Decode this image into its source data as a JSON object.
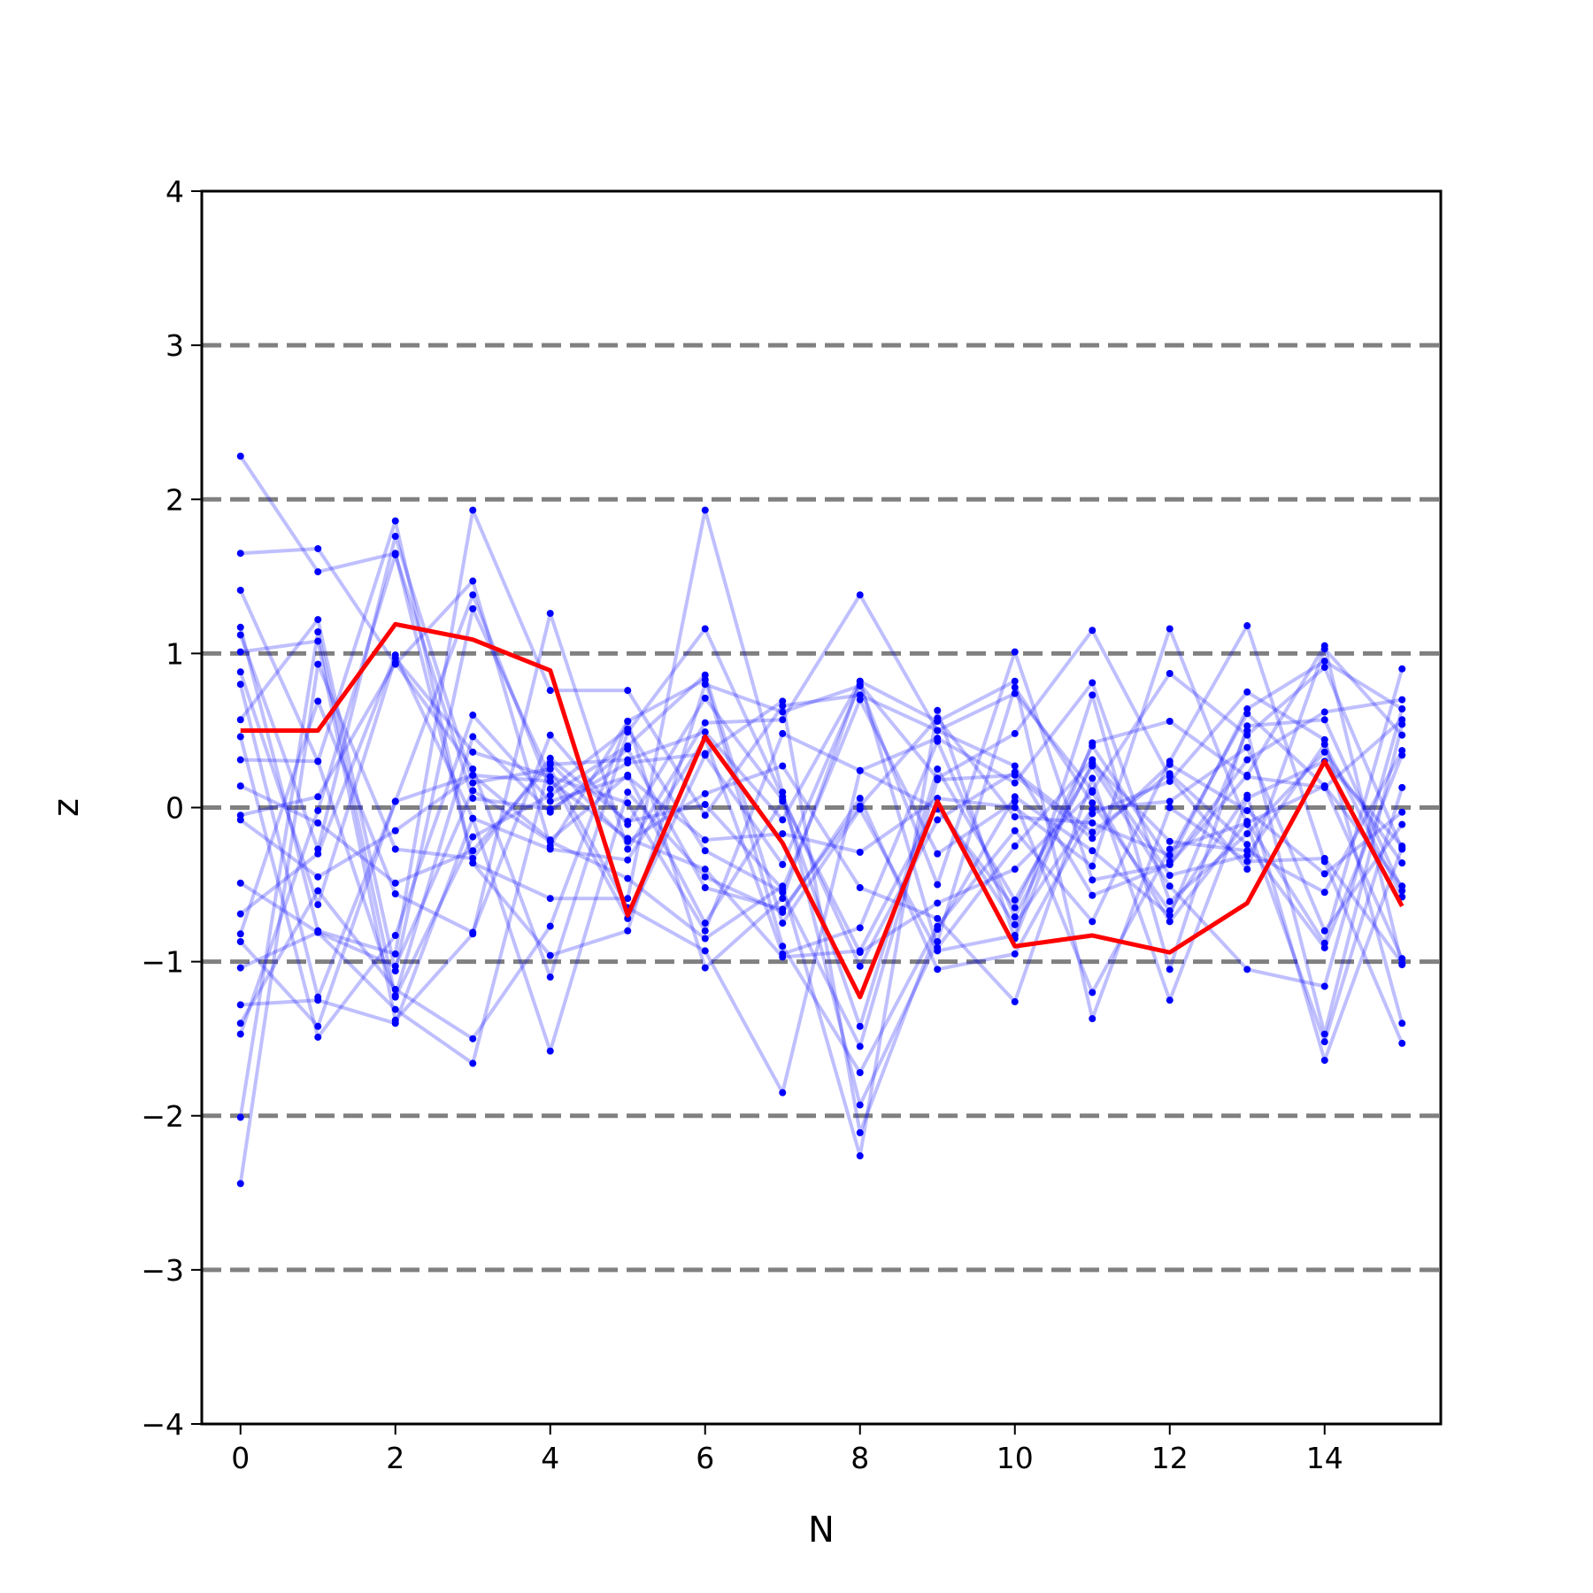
{
  "chart_data": {
    "type": "line",
    "title": "",
    "xlabel": "N",
    "ylabel": "z",
    "xlim": [
      -0.5,
      15.5
    ],
    "ylim": [
      -4,
      4
    ],
    "xticks": [
      0,
      2,
      4,
      6,
      8,
      10,
      12,
      14
    ],
    "yticks": [
      -4,
      -3,
      -2,
      -1,
      0,
      1,
      2,
      3,
      4
    ],
    "ytick_labels": [
      "−4",
      "−3",
      "−2",
      "−1",
      "0",
      "1",
      "2",
      "3",
      "4"
    ],
    "reference_lines_y": [
      -3,
      -2,
      -1,
      0,
      1,
      2,
      3
    ],
    "reference_line_color": "#808080",
    "grid": false,
    "x": [
      0,
      1,
      2,
      3,
      4,
      5,
      6,
      7,
      8,
      9,
      10,
      11,
      12,
      13,
      14,
      15
    ],
    "background_series_color": "#0000ff",
    "background_series_opacity": 0.25,
    "background_series": [
      [
        2.28,
        1.53,
        1.65,
        -0.36,
        -0.59,
        -0.59,
        1.93,
        0.1,
        -1.93,
        -0.87,
        0.78,
        0.03,
        -0.67,
        0.08,
        -1.64,
        -0.26
      ],
      [
        1.65,
        1.68,
        0.93,
        1.47,
        -0.25,
        0.56,
        0.83,
        -0.9,
        -1.72,
        -0.77,
        -0.15,
        -0.74,
        0.3,
        1.18,
        -0.35,
        -1.53
      ],
      [
        1.41,
        0.3,
        1.86,
        -0.36,
        -0.96,
        -0.8,
        0.8,
        0.62,
        0.79,
        -0.5,
        1.01,
        -0.47,
        -0.37,
        0.21,
        1.05,
        -1.02
      ],
      [
        1.17,
        -0.8,
        -0.95,
        1.93,
        0.76,
        0.76,
        -0.05,
        0.66,
        0.73,
        0.5,
        0.74,
        0.11,
        0.87,
        0.47,
        0.91,
        -0.27
      ],
      [
        1.12,
        -0.27,
        1.76,
        0.16,
        0.25,
        -0.65,
        -0.93,
        -1.85,
        0.24,
        -0.01,
        -0.65,
        0.4,
        -0.35,
        0.64,
        0.95,
        0.64
      ],
      [
        1.01,
        1.08,
        -1.38,
        -0.82,
        1.26,
        -0.27,
        0.55,
        0.57,
        1.38,
        0.5,
        0.27,
        -0.57,
        -0.37,
        0.31,
        0.62,
        0.7
      ],
      [
        0.88,
        -0.63,
        0.97,
        0.36,
        0.2,
        -0.72,
        0.34,
        -0.37,
        0.8,
        0.19,
        0.48,
        1.15,
        0.2,
        -0.4,
        1.03,
        0.47
      ],
      [
        0.8,
        -1.23,
        0.04,
        1.38,
        0.12,
        0.51,
        -0.28,
        -0.55,
        -1.55,
        0.18,
        0.21,
        -0.2,
        0.28,
        -0.02,
        -0.43,
        -0.03
      ],
      [
        0.57,
        1.22,
        -1.06,
        1.29,
        0.2,
        0.03,
        -0.8,
        0.48,
        0.24,
        0.45,
        0.16,
        0.81,
        -0.61,
        -0.17,
        0.36,
        -0.36
      ],
      [
        0.46,
        -1.49,
        -0.83,
        0.6,
        0.04,
        0.2,
        -0.21,
        -0.17,
        -0.29,
        0.06,
        0.0,
        -0.38,
        1.16,
        -0.11,
        -1.52,
        0.13
      ],
      [
        0.31,
        0.3,
        -1.22,
        0.46,
        -0.03,
        0.38,
        -0.52,
        -0.66,
        0.01,
        0.58,
        -0.06,
        -0.1,
        -0.31,
        0.61,
        0.14,
        -0.51
      ],
      [
        0.14,
        -0.1,
        -0.49,
        -0.28,
        0.28,
        0.31,
        0.49,
        -0.08,
        0.82,
        -0.91,
        -0.25,
        0.31,
        -0.44,
        -0.31,
        0.41,
        -0.58
      ],
      [
        -0.05,
        0.07,
        0.94,
        0.25,
        -1.1,
        0.49,
        1.16,
        0.07,
        -1.03,
        -0.08,
        0.23,
        -0.16,
        0.22,
        -0.24,
        -0.91,
        0.34
      ],
      [
        -0.08,
        -0.45,
        -0.15,
        0.21,
        0.17,
        -0.2,
        -0.4,
        -0.97,
        -0.93,
        0.02,
        -0.76,
        -0.01,
        0.04,
        0.39,
        -0.8,
        -0.11
      ],
      [
        -0.49,
        -0.81,
        -1.03,
        0.11,
        -0.22,
        -0.46,
        -0.85,
        -0.51,
        -2.26,
        0.63,
        -0.85,
        0.42,
        0.56,
        0.2,
        0.13,
        0.57
      ],
      [
        -0.69,
        -0.3,
        0.99,
        -0.07,
        -1.58,
        0.1,
        -0.45,
        -0.68,
        0.06,
        -1.05,
        -0.95,
        -0.04,
        0.17,
        0.75,
        0.44,
        -1.4
      ],
      [
        -0.82,
        0.69,
        -0.56,
        -0.81,
        0.47,
        -0.11,
        0.71,
        0.05,
        -0.94,
        -0.62,
        -0.4,
        0.1,
        -0.74,
        -0.09,
        -0.88,
        0.9
      ],
      [
        -0.87,
        -1.42,
        0.04,
        0.21,
        -0.21,
        0.21,
        -0.75,
        0.04,
        -1.42,
        0.25,
        -0.6,
        0.27,
        -0.51,
        -1.05,
        -1.16,
        0.64
      ],
      [
        -1.04,
        -0.81,
        -1.31,
        -1.66,
        0.29,
        -0.22,
        0.09,
        0.27,
        -0.52,
        -0.72,
        -1.26,
        0.19,
        -1.25,
        0.06,
        0.3,
        -0.25
      ],
      [
        -1.28,
        -1.25,
        -1.4,
        -0.07,
        -0.27,
        -0.34,
        0.45,
        -0.95,
        -0.78,
        0.43,
        -0.71,
        0.29,
        -0.22,
        -0.28,
        -0.55,
        0.37
      ],
      [
        -1.4,
        -0.54,
        -1.18,
        -1.5,
        -0.77,
        0.56,
        -1.04,
        -0.59,
        0.82,
        0.56,
        0.82,
        -1.37,
        0.0,
        -0.35,
        -0.33,
        -1.01
      ],
      [
        -1.47,
        -0.02,
        1.64,
        0.06,
        -0.01,
        0.29,
        0.35,
        0.69,
        -2.11,
        -0.79,
        0.07,
        -0.28,
        -0.7,
        0.5,
        -1.47,
        0.54
      ],
      [
        -2.01,
        1.14,
        -1.23,
        -0.19,
        0.08,
        0.4,
        0.86,
        -0.75,
        -0.01,
        -0.93,
        -0.83,
        0.73,
        -1.05,
        0.53,
        0.57,
        -0.54
      ],
      [
        -2.44,
        0.93,
        -0.27,
        -0.33,
        0.32,
        -0.09,
        0.02,
        -0.53,
        0.7,
        -0.3,
        0.04,
        -1.2,
        -0.27,
        -0.1,
        0.14,
        -0.98
      ]
    ],
    "mean_series": {
      "color": "#ff0000",
      "values": [
        0.5,
        0.5,
        1.19,
        1.09,
        0.89,
        -0.7,
        0.46,
        -0.23,
        -1.23,
        0.04,
        -0.9,
        -0.83,
        -0.94,
        -0.62,
        0.3,
        -0.64
      ]
    }
  }
}
